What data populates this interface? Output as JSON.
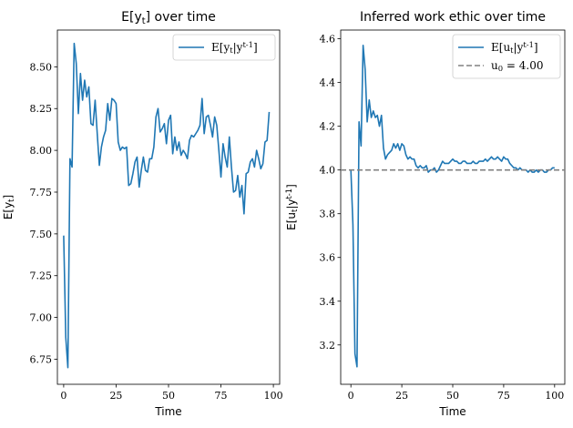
{
  "chart_data": [
    {
      "type": "line",
      "title": "E[y_t] over time",
      "xlabel": "Time",
      "ylabel": "E[y_t]",
      "xlim": [
        -3,
        103
      ],
      "ylim": [
        6.6,
        8.72
      ],
      "xticks": [
        0,
        25,
        50,
        75,
        100
      ],
      "yticks": [
        6.75,
        7.0,
        7.25,
        7.5,
        7.75,
        8.0,
        8.25,
        8.5
      ],
      "grid": false,
      "legend_position": "top-right",
      "series": [
        {
          "name": "E[y_t|y^{t-1}]",
          "color": "#1f77b4",
          "style": "solid",
          "x": [
            0,
            1,
            2,
            3,
            4,
            5,
            6,
            7,
            8,
            9,
            10,
            11,
            12,
            13,
            14,
            15,
            16,
            17,
            18,
            19,
            20,
            21,
            22,
            23,
            24,
            25,
            26,
            27,
            28,
            29,
            30,
            31,
            32,
            33,
            34,
            35,
            36,
            37,
            38,
            39,
            40,
            41,
            42,
            43,
            44,
            45,
            46,
            47,
            48,
            49,
            50,
            51,
            52,
            53,
            54,
            55,
            56,
            57,
            58,
            59,
            60,
            61,
            62,
            63,
            64,
            65,
            66,
            67,
            68,
            69,
            70,
            71,
            72,
            73,
            74,
            75,
            76,
            77,
            78,
            79,
            80,
            81,
            82,
            83,
            84,
            85,
            86,
            87,
            88,
            89,
            90,
            91,
            92,
            93,
            94,
            95,
            96,
            97,
            98
          ],
          "values": [
            7.49,
            6.88,
            6.7,
            7.95,
            7.9,
            8.64,
            8.52,
            8.22,
            8.46,
            8.3,
            8.42,
            8.32,
            8.38,
            8.16,
            8.15,
            8.3,
            8.1,
            7.91,
            8.02,
            8.08,
            8.12,
            8.28,
            8.18,
            8.31,
            8.3,
            8.28,
            8.05,
            8.0,
            8.02,
            8.01,
            8.02,
            7.79,
            7.8,
            7.86,
            7.93,
            7.96,
            7.78,
            7.88,
            7.96,
            7.88,
            7.87,
            7.95,
            7.95,
            8.02,
            8.2,
            8.25,
            8.11,
            8.13,
            8.16,
            8.04,
            8.18,
            8.21,
            7.98,
            8.08,
            8.0,
            8.05,
            7.97,
            8.0,
            7.98,
            7.95,
            8.06,
            8.09,
            8.08,
            8.1,
            8.12,
            8.15,
            8.31,
            8.1,
            8.2,
            8.21,
            8.15,
            8.08,
            8.2,
            8.15,
            8.0,
            7.84,
            8.04,
            7.96,
            7.9,
            8.08,
            7.9,
            7.75,
            7.76,
            7.85,
            7.72,
            7.79,
            7.62,
            7.86,
            7.87,
            7.93,
            7.95,
            7.9,
            8.0,
            7.95,
            7.89,
            7.92,
            8.05,
            8.06,
            8.23
          ]
        }
      ]
    },
    {
      "type": "line",
      "title": "Inferred work ethic over time",
      "xlabel": "Time",
      "ylabel": "E[u_t|y^{t-1}]",
      "xlim": [
        -5,
        105
      ],
      "ylim": [
        3.02,
        4.64
      ],
      "xticks": [
        0,
        25,
        50,
        75,
        100
      ],
      "yticks": [
        3.2,
        3.4,
        3.6,
        3.8,
        4.0,
        4.2,
        4.4,
        4.6
      ],
      "grid": false,
      "legend_position": "top-right",
      "series": [
        {
          "name": "E[u_t|y^{t-1}]",
          "color": "#1f77b4",
          "style": "solid",
          "x": [
            0,
            1,
            2,
            3,
            4,
            5,
            6,
            7,
            8,
            9,
            10,
            11,
            12,
            13,
            14,
            15,
            16,
            17,
            18,
            19,
            20,
            21,
            22,
            23,
            24,
            25,
            26,
            27,
            28,
            29,
            30,
            31,
            32,
            33,
            34,
            35,
            36,
            37,
            38,
            39,
            40,
            41,
            42,
            43,
            44,
            45,
            46,
            47,
            48,
            49,
            50,
            51,
            52,
            53,
            54,
            55,
            56,
            57,
            58,
            59,
            60,
            61,
            62,
            63,
            64,
            65,
            66,
            67,
            68,
            69,
            70,
            71,
            72,
            73,
            74,
            75,
            76,
            77,
            78,
            79,
            80,
            81,
            82,
            83,
            84,
            85,
            86,
            87,
            88,
            89,
            90,
            91,
            92,
            93,
            94,
            95,
            96,
            97,
            98,
            99,
            100
          ],
          "values": [
            4.0,
            3.75,
            3.16,
            3.1,
            4.22,
            4.11,
            4.57,
            4.46,
            4.22,
            4.32,
            4.24,
            4.27,
            4.24,
            4.25,
            4.2,
            4.25,
            4.1,
            4.05,
            4.07,
            4.08,
            4.09,
            4.12,
            4.1,
            4.12,
            4.09,
            4.12,
            4.11,
            4.07,
            4.05,
            4.06,
            4.05,
            4.05,
            4.02,
            4.01,
            4.02,
            4.01,
            4.01,
            4.02,
            3.99,
            4.0,
            4.0,
            4.01,
            3.99,
            4.0,
            4.02,
            4.04,
            4.03,
            4.03,
            4.03,
            4.04,
            4.05,
            4.04,
            4.04,
            4.03,
            4.03,
            4.04,
            4.04,
            4.03,
            4.03,
            4.03,
            4.04,
            4.03,
            4.03,
            4.04,
            4.04,
            4.04,
            4.05,
            4.04,
            4.05,
            4.06,
            4.05,
            4.05,
            4.06,
            4.05,
            4.04,
            4.06,
            4.05,
            4.05,
            4.03,
            4.02,
            4.01,
            4.01,
            4.0,
            4.01,
            4.0,
            4.0,
            4.0,
            3.99,
            4.0,
            3.99,
            3.99,
            4.0,
            3.99,
            4.0,
            4.0,
            3.99,
            3.99,
            4.0,
            4.0,
            4.01,
            4.01
          ]
        },
        {
          "name": "u_0 = 4.00",
          "color": "#808080",
          "style": "dashed",
          "x": [
            -5,
            105
          ],
          "values": [
            4.0,
            4.0
          ]
        }
      ]
    }
  ]
}
